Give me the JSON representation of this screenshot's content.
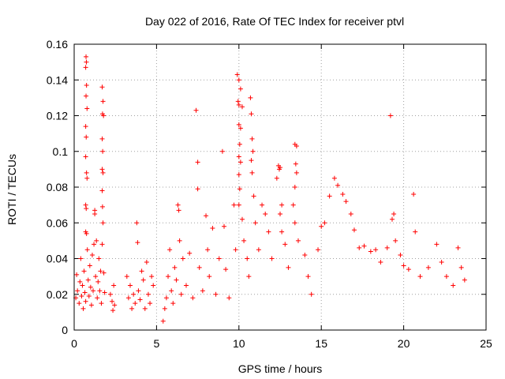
{
  "chart_data": {
    "type": "scatter",
    "title": "Day 022 of 2016, Rate Of TEC Index for receiver ptvl",
    "xlabel": "GPS time / hours",
    "ylabel": "ROTI / TECUs",
    "xlim": [
      0,
      25
    ],
    "ylim": [
      0,
      0.16
    ],
    "x_ticks": [
      0,
      5,
      10,
      15,
      20,
      25
    ],
    "y_ticks": [
      0,
      0.02,
      0.04,
      0.06,
      0.08,
      0.1,
      0.12,
      0.14,
      0.16
    ],
    "x_tick_labels": [
      "0",
      "5",
      "10",
      "15",
      "20",
      "25"
    ],
    "y_tick_labels": [
      "0",
      "0.02",
      "0.04",
      "0.06",
      "0.08",
      "0.1",
      "0.12",
      "0.14",
      "0.16"
    ],
    "grid": true,
    "marker": "plus",
    "series": [
      {
        "name": "ROTI",
        "color": "#ff0000",
        "points": [
          [
            0.1,
            0.018
          ],
          [
            0.15,
            0.031
          ],
          [
            0.2,
            0.022
          ],
          [
            0.3,
            0.015
          ],
          [
            0.35,
            0.027
          ],
          [
            0.4,
            0.04
          ],
          [
            0.45,
            0.019
          ],
          [
            0.5,
            0.025
          ],
          [
            0.55,
            0.012
          ],
          [
            0.6,
            0.033
          ],
          [
            0.65,
            0.021
          ],
          [
            0.7,
            0.016
          ],
          [
            0.72,
            0.153
          ],
          [
            0.74,
            0.15
          ],
          [
            0.7,
            0.147
          ],
          [
            0.75,
            0.137
          ],
          [
            0.72,
            0.131
          ],
          [
            0.78,
            0.124
          ],
          [
            0.7,
            0.114
          ],
          [
            0.73,
            0.108
          ],
          [
            0.7,
            0.097
          ],
          [
            0.75,
            0.088
          ],
          [
            0.78,
            0.085
          ],
          [
            0.7,
            0.07
          ],
          [
            0.73,
            0.068
          ],
          [
            0.7,
            0.055
          ],
          [
            0.75,
            0.054
          ],
          [
            0.8,
            0.045
          ],
          [
            0.85,
            0.028
          ],
          [
            0.9,
            0.019
          ],
          [
            0.95,
            0.036
          ],
          [
            1.0,
            0.024
          ],
          [
            1.05,
            0.014
          ],
          [
            1.1,
            0.042
          ],
          [
            1.15,
            0.022
          ],
          [
            1.2,
            0.048
          ],
          [
            1.25,
            0.067
          ],
          [
            1.25,
            0.065
          ],
          [
            1.3,
            0.03
          ],
          [
            1.35,
            0.05
          ],
          [
            1.4,
            0.018
          ],
          [
            1.45,
            0.027
          ],
          [
            1.5,
            0.04
          ],
          [
            1.55,
            0.022
          ],
          [
            1.6,
            0.033
          ],
          [
            1.65,
            0.015
          ],
          [
            1.7,
            0.136
          ],
          [
            1.75,
            0.128
          ],
          [
            1.72,
            0.121
          ],
          [
            1.78,
            0.12
          ],
          [
            1.7,
            0.107
          ],
          [
            1.73,
            0.1
          ],
          [
            1.7,
            0.09
          ],
          [
            1.75,
            0.088
          ],
          [
            1.7,
            0.078
          ],
          [
            1.72,
            0.069
          ],
          [
            1.75,
            0.06
          ],
          [
            1.7,
            0.048
          ],
          [
            1.8,
            0.032
          ],
          [
            1.85,
            0.021
          ],
          [
            2.2,
            0.02
          ],
          [
            2.3,
            0.016
          ],
          [
            2.35,
            0.011
          ],
          [
            2.4,
            0.025
          ],
          [
            2.45,
            0.014
          ],
          [
            3.2,
            0.03
          ],
          [
            3.3,
            0.018
          ],
          [
            3.4,
            0.025
          ],
          [
            3.5,
            0.012
          ],
          [
            3.6,
            0.02
          ],
          [
            3.7,
            0.015
          ],
          [
            3.8,
            0.06
          ],
          [
            3.85,
            0.049
          ],
          [
            3.9,
            0.022
          ],
          [
            4.0,
            0.017
          ],
          [
            4.1,
            0.033
          ],
          [
            4.2,
            0.028
          ],
          [
            4.3,
            0.012
          ],
          [
            4.4,
            0.038
          ],
          [
            4.5,
            0.02
          ],
          [
            4.6,
            0.015
          ],
          [
            4.7,
            0.03
          ],
          [
            4.8,
            0.025
          ],
          [
            5.4,
            0.005
          ],
          [
            5.5,
            0.012
          ],
          [
            5.6,
            0.018
          ],
          [
            5.7,
            0.03
          ],
          [
            5.8,
            0.045
          ],
          [
            5.9,
            0.022
          ],
          [
            6.0,
            0.015
          ],
          [
            6.1,
            0.035
          ],
          [
            6.2,
            0.028
          ],
          [
            6.3,
            0.07
          ],
          [
            6.35,
            0.067
          ],
          [
            6.4,
            0.05
          ],
          [
            6.5,
            0.02
          ],
          [
            6.6,
            0.04
          ],
          [
            6.8,
            0.025
          ],
          [
            7.0,
            0.043
          ],
          [
            7.2,
            0.018
          ],
          [
            7.4,
            0.123
          ],
          [
            7.5,
            0.094
          ],
          [
            7.5,
            0.079
          ],
          [
            7.6,
            0.035
          ],
          [
            7.8,
            0.022
          ],
          [
            8.0,
            0.064
          ],
          [
            8.1,
            0.045
          ],
          [
            8.2,
            0.03
          ],
          [
            8.4,
            0.057
          ],
          [
            8.6,
            0.02
          ],
          [
            8.8,
            0.04
          ],
          [
            9.0,
            0.1
          ],
          [
            9.1,
            0.058
          ],
          [
            9.2,
            0.034
          ],
          [
            9.4,
            0.018
          ],
          [
            9.7,
            0.07
          ],
          [
            9.8,
            0.045
          ],
          [
            9.9,
            0.143
          ],
          [
            10.0,
            0.14
          ],
          [
            9.95,
            0.128
          ],
          [
            10.0,
            0.126
          ],
          [
            10.1,
            0.135
          ],
          [
            10.2,
            0.125
          ],
          [
            10.0,
            0.115
          ],
          [
            10.1,
            0.113
          ],
          [
            10.05,
            0.104
          ],
          [
            10.0,
            0.097
          ],
          [
            10.1,
            0.094
          ],
          [
            10.0,
            0.087
          ],
          [
            10.05,
            0.079
          ],
          [
            10.0,
            0.07
          ],
          [
            10.2,
            0.062
          ],
          [
            10.3,
            0.05
          ],
          [
            10.5,
            0.04
          ],
          [
            10.6,
            0.03
          ],
          [
            10.7,
            0.13
          ],
          [
            10.75,
            0.121
          ],
          [
            10.8,
            0.107
          ],
          [
            10.85,
            0.1
          ],
          [
            10.75,
            0.095
          ],
          [
            10.8,
            0.088
          ],
          [
            10.9,
            0.075
          ],
          [
            11.0,
            0.06
          ],
          [
            11.2,
            0.045
          ],
          [
            11.4,
            0.07
          ],
          [
            11.6,
            0.065
          ],
          [
            11.8,
            0.055
          ],
          [
            12.0,
            0.04
          ],
          [
            12.3,
            0.085
          ],
          [
            12.4,
            0.092
          ],
          [
            12.5,
            0.091
          ],
          [
            12.45,
            0.09
          ],
          [
            12.6,
            0.07
          ],
          [
            12.5,
            0.065
          ],
          [
            12.6,
            0.055
          ],
          [
            12.8,
            0.048
          ],
          [
            13.0,
            0.035
          ],
          [
            13.4,
            0.104
          ],
          [
            13.5,
            0.103
          ],
          [
            13.45,
            0.093
          ],
          [
            13.5,
            0.088
          ],
          [
            13.4,
            0.08
          ],
          [
            13.3,
            0.07
          ],
          [
            13.4,
            0.06
          ],
          [
            13.6,
            0.05
          ],
          [
            14.0,
            0.042
          ],
          [
            14.2,
            0.03
          ],
          [
            14.4,
            0.02
          ],
          [
            14.8,
            0.045
          ],
          [
            15.0,
            0.058
          ],
          [
            15.2,
            0.06
          ],
          [
            15.5,
            0.075
          ],
          [
            15.8,
            0.085
          ],
          [
            16.0,
            0.081
          ],
          [
            16.3,
            0.076
          ],
          [
            16.5,
            0.072
          ],
          [
            16.8,
            0.065
          ],
          [
            17.0,
            0.056
          ],
          [
            17.3,
            0.046
          ],
          [
            17.6,
            0.047
          ],
          [
            18.0,
            0.044
          ],
          [
            18.3,
            0.045
          ],
          [
            18.6,
            0.038
          ],
          [
            19.0,
            0.046
          ],
          [
            19.2,
            0.12
          ],
          [
            19.3,
            0.062
          ],
          [
            19.4,
            0.065
          ],
          [
            19.5,
            0.05
          ],
          [
            19.8,
            0.042
          ],
          [
            20.0,
            0.036
          ],
          [
            20.3,
            0.034
          ],
          [
            20.6,
            0.076
          ],
          [
            20.7,
            0.055
          ],
          [
            21.0,
            0.03
          ],
          [
            21.5,
            0.035
          ],
          [
            22.0,
            0.048
          ],
          [
            22.3,
            0.038
          ],
          [
            22.6,
            0.03
          ],
          [
            23.0,
            0.025
          ],
          [
            23.3,
            0.046
          ],
          [
            23.5,
            0.035
          ],
          [
            23.7,
            0.028
          ]
        ]
      }
    ]
  }
}
